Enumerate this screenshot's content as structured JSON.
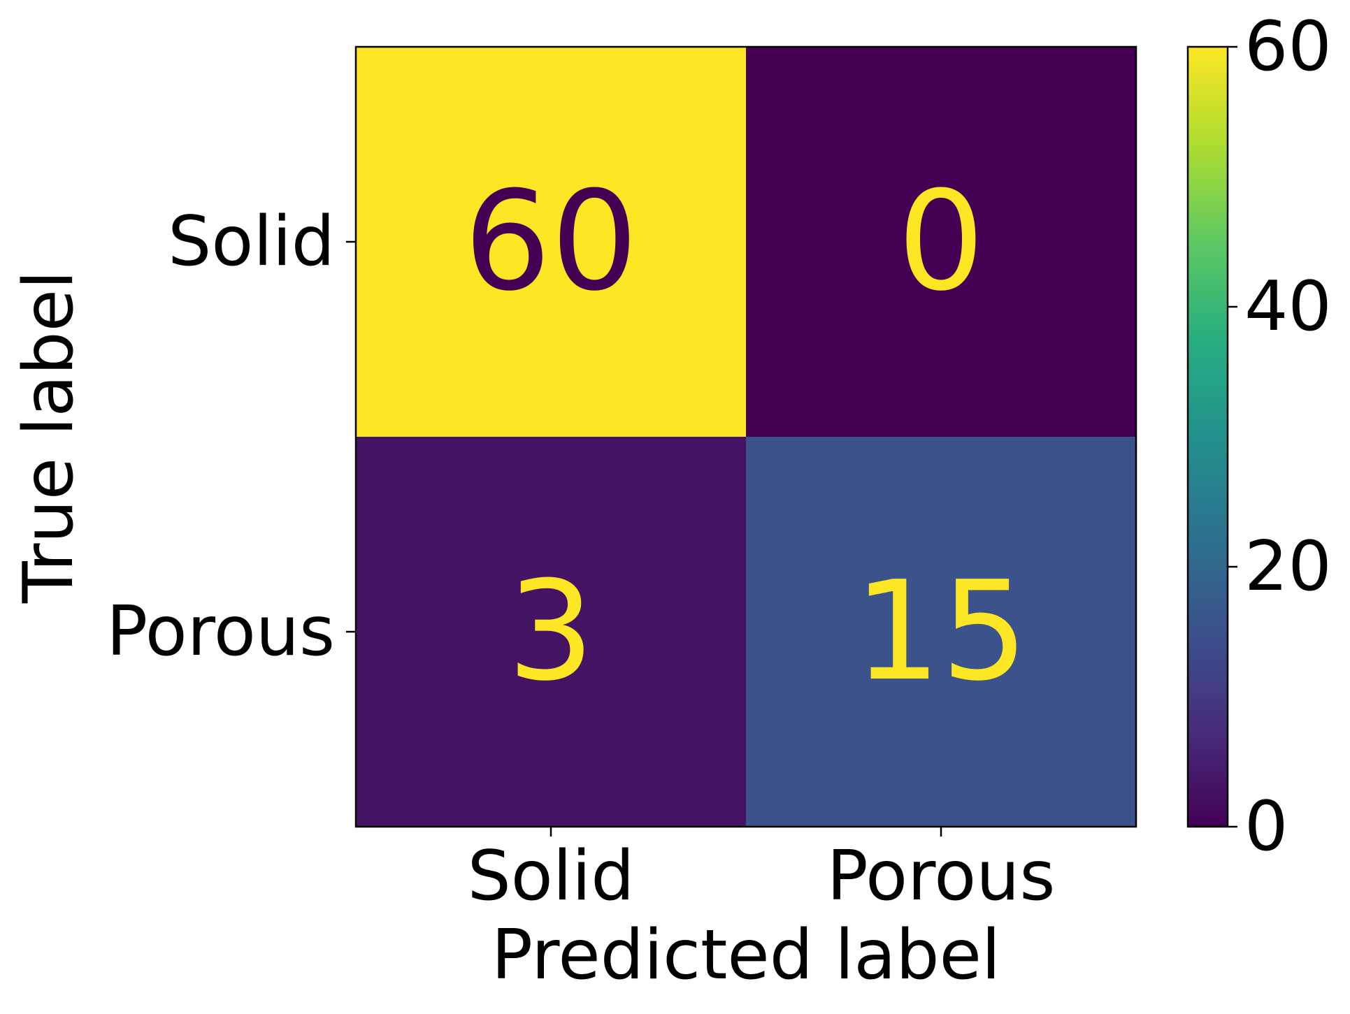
{
  "chart_data": {
    "type": "heatmap",
    "title": "",
    "xlabel": "Predicted label",
    "ylabel": "True label",
    "x_categories": [
      "Solid",
      "Porous"
    ],
    "y_categories": [
      "Solid",
      "Porous"
    ],
    "values": [
      [
        60,
        0
      ],
      [
        3,
        15
      ]
    ],
    "colormap": "viridis",
    "colorbar": {
      "vmin": 0,
      "vmax": 60,
      "ticks": [
        0,
        20,
        40,
        60
      ],
      "tick_labels": [
        "0",
        "20",
        "40",
        "60"
      ],
      "placement": "right"
    },
    "text_color_on_dark": "#fde725",
    "text_color_on_light": "#440154",
    "grid": false
  }
}
